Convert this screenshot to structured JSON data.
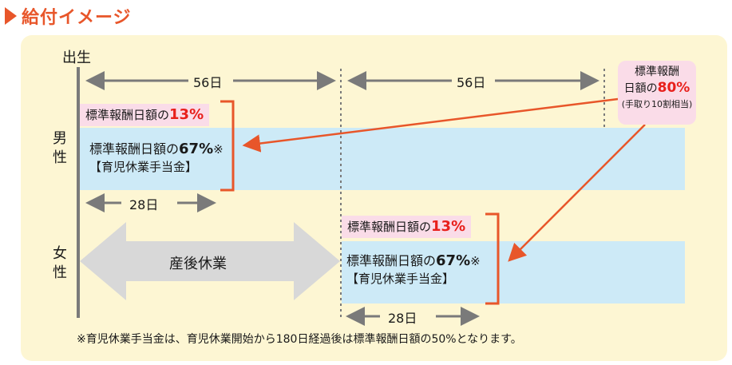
{
  "title": "給付イメージ",
  "birth_label": "出生",
  "male_label": [
    "男",
    "性"
  ],
  "female_label": [
    "女",
    "性"
  ],
  "period_days": {
    "first": "56日",
    "second": "56日",
    "male_28": "28日",
    "female_28": "28日"
  },
  "male": {
    "top_label": "標準報酬日額の",
    "top_pct": "13%",
    "benefit_label": "標準報酬日額の",
    "benefit_pct": "67%",
    "benefit_note": "※",
    "benefit_name": "【育児休業手当金】"
  },
  "female": {
    "top_label": "標準報酬日額の",
    "top_pct": "13%",
    "benefit_label": "標準報酬日額の",
    "benefit_pct": "67%",
    "benefit_note": "※",
    "benefit_name": "【育児休業手当金】",
    "postnatal_leave": "産後休業"
  },
  "callout": {
    "line1": "標準報酬",
    "line2_label": "日額の",
    "line2_pct": "80%",
    "line3": "(手取り10割相当)"
  },
  "footnote": "※育児休業手当金は、育児休業開始から180日経過後は標準報酬日額の50%となります。",
  "colors": {
    "accent": "#e8562a",
    "red": "#e8201c",
    "panel": "#fdf6d3",
    "pink": "#fadce8",
    "blue": "#cdeaf7",
    "gray": "#7a7a7a"
  }
}
